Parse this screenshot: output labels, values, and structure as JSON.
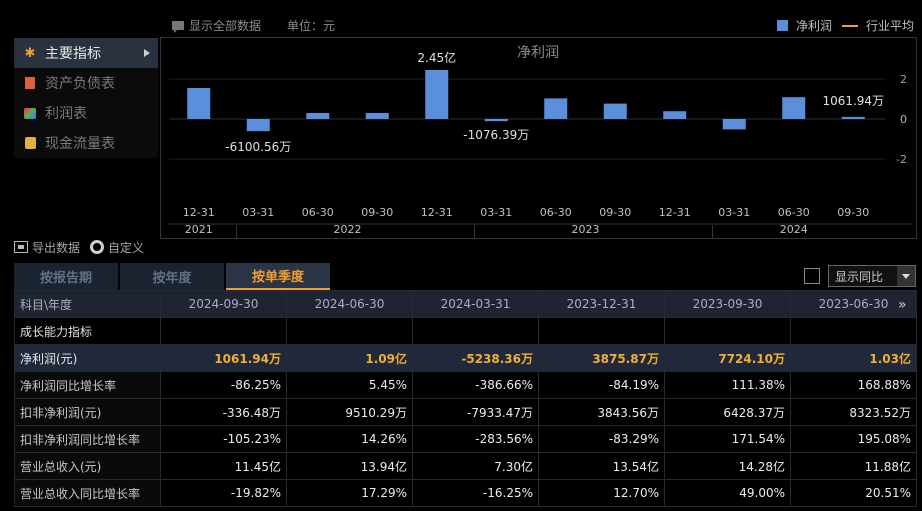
{
  "top": {
    "show_all_label": "显示全部数据",
    "unit_label": "单位：元"
  },
  "legend": {
    "series_label": "净利润",
    "avg_label": "行业平均"
  },
  "menu": [
    {
      "label": "主要指标",
      "icon": "star-icon",
      "active": true
    },
    {
      "label": "资产负债表",
      "icon": "document-icon",
      "active": false
    },
    {
      "label": "利润表",
      "icon": "cube-icon",
      "active": false
    },
    {
      "label": "现金流量表",
      "icon": "coins-icon",
      "active": false
    }
  ],
  "toolbar": {
    "export_label": "导出数据",
    "custom_label": "自定义"
  },
  "tabs": [
    {
      "label": "按报告期",
      "active": false
    },
    {
      "label": "按年度",
      "active": false
    },
    {
      "label": "按单季度",
      "active": true
    }
  ],
  "compare": {
    "select_value": "显示同比"
  },
  "chart_data": {
    "type": "bar",
    "title": "净利润",
    "categories": [
      "12-31",
      "03-31",
      "06-30",
      "09-30",
      "12-31",
      "03-31",
      "06-30",
      "09-30",
      "12-31",
      "03-31",
      "06-30",
      "09-30"
    ],
    "years": [
      {
        "label": "2021",
        "span": [
          0,
          0
        ]
      },
      {
        "label": "2022",
        "span": [
          1,
          4
        ]
      },
      {
        "label": "2023",
        "span": [
          5,
          8
        ]
      },
      {
        "label": "2024",
        "span": [
          9,
          11
        ]
      }
    ],
    "series": [
      {
        "name": "净利润",
        "values": [
          1.55,
          -0.61,
          0.3,
          0.3,
          2.45,
          -0.1076,
          1.03,
          0.77,
          0.39,
          -0.52,
          1.09,
          0.106
        ]
      }
    ],
    "unit": "亿",
    "ylim": [
      -3,
      3
    ],
    "yticks": [
      2,
      0,
      -2
    ],
    "annotations": [
      {
        "index": 1,
        "text": "-6100.56万"
      },
      {
        "index": 4,
        "text": "2.45亿"
      },
      {
        "index": 5,
        "text": "-1076.39万"
      },
      {
        "index": 11,
        "text": "1061.94万"
      }
    ],
    "bar_color": "#5b8fdc"
  },
  "table": {
    "header_label": "科目\\年度",
    "columns": [
      "2024-09-30",
      "2024-06-30",
      "2024-03-31",
      "2023-12-31",
      "2023-09-30",
      "2023-06-30"
    ],
    "rows": [
      {
        "label": "成长能力指标",
        "type": "section",
        "values": [
          "",
          "",
          "",
          "",
          "",
          ""
        ]
      },
      {
        "label": "净利润(元)",
        "type": "hl",
        "values": [
          "1061.94万",
          "1.09亿",
          "-5238.36万",
          "3875.87万",
          "7724.10万",
          "1.03亿"
        ]
      },
      {
        "label": "净利润同比增长率",
        "type": "row",
        "values": [
          "-86.25%",
          "5.45%",
          "-386.66%",
          "-84.19%",
          "111.38%",
          "168.88%"
        ]
      },
      {
        "label": "扣非净利润(元)",
        "type": "row",
        "values": [
          "-336.48万",
          "9510.29万",
          "-7933.47万",
          "3843.56万",
          "6428.37万",
          "8323.52万"
        ]
      },
      {
        "label": "扣非净利润同比增长率",
        "type": "row",
        "values": [
          "-105.23%",
          "14.26%",
          "-283.56%",
          "-83.29%",
          "171.54%",
          "195.08%"
        ]
      },
      {
        "label": "营业总收入(元)",
        "type": "row",
        "values": [
          "11.45亿",
          "13.94亿",
          "7.30亿",
          "13.54亿",
          "14.28亿",
          "11.88亿"
        ]
      },
      {
        "label": "营业总收入同比增长率",
        "type": "row",
        "values": [
          "-19.82%",
          "17.29%",
          "-16.25%",
          "12.70%",
          "49.00%",
          "20.51%"
        ]
      }
    ]
  }
}
